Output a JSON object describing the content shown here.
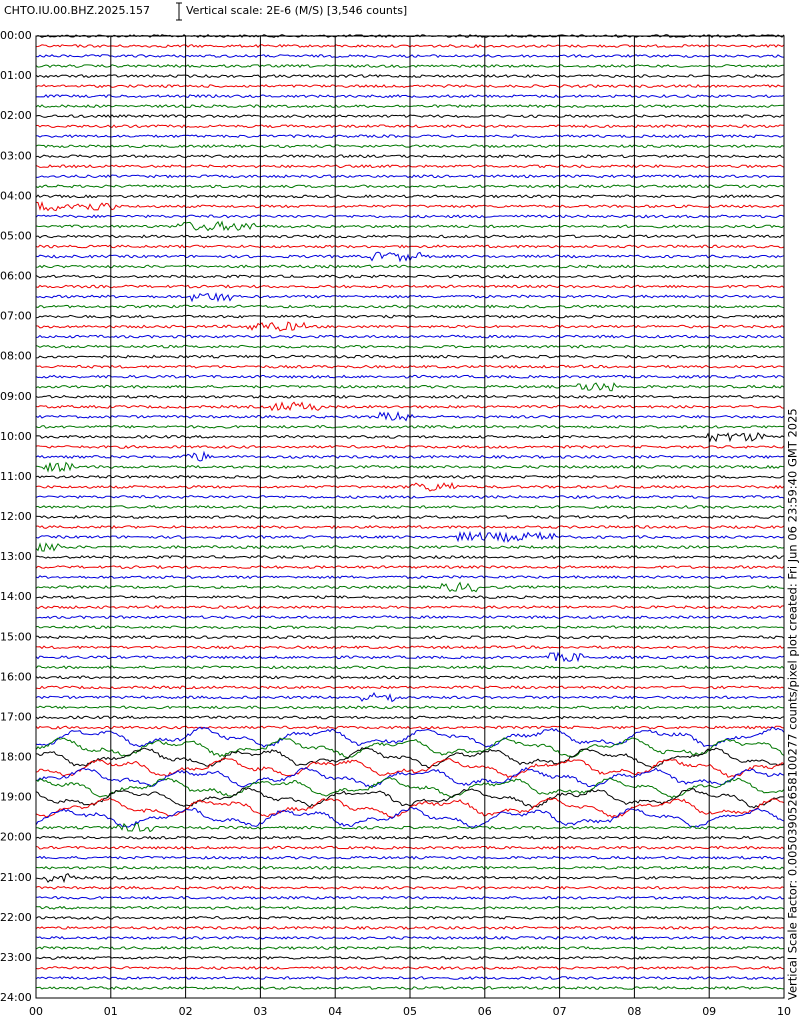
{
  "header": {
    "station": "CHTO.IU.00.BHZ.2025.157",
    "scale": "Vertical scale: 2E-6 (M/S) [3,546 counts]"
  },
  "axis": {
    "hours": [
      "00:00",
      "01:00",
      "02:00",
      "03:00",
      "04:00",
      "05:00",
      "06:00",
      "07:00",
      "08:00",
      "09:00",
      "10:00",
      "11:00",
      "12:00",
      "13:00",
      "14:00",
      "15:00",
      "16:00",
      "17:00",
      "18:00",
      "19:00",
      "20:00",
      "21:00",
      "22:00",
      "23:00",
      "24:00"
    ],
    "minutes": [
      "00",
      "01",
      "02",
      "03",
      "04",
      "05",
      "06",
      "07",
      "08",
      "09",
      "10"
    ]
  },
  "footer": "Vertical Scale Factor: 0.005039052658100277 counts/pixel plot created: Fri Jun 06 23:59:40 GMT 2025"
}
